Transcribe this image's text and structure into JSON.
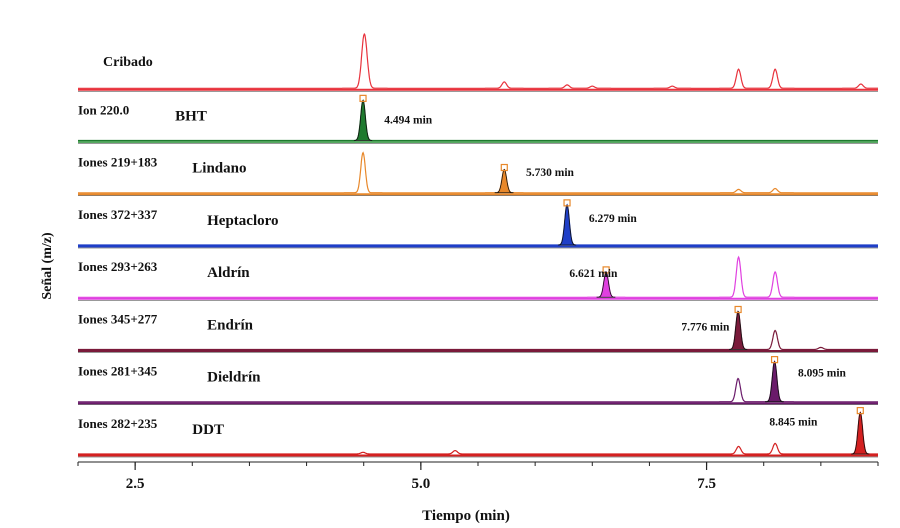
{
  "chart_data": {
    "type": "line",
    "xlabel": "Tiempo (min)",
    "ylabel": "Señal (m/z)",
    "xlim": [
      2.0,
      9.0
    ],
    "x_ticks": [
      {
        "value": 2.5,
        "label": "2.5"
      },
      {
        "value": 5.0,
        "label": "5.0"
      },
      {
        "value": 7.5,
        "label": "7.5"
      }
    ],
    "minor_tick_step": 0.5,
    "grid": false,
    "series": [
      {
        "ion": "Cribado",
        "name": "",
        "color": "#e8323c",
        "marked": false,
        "retention_time": "",
        "ion_label_x": 1.2,
        "peaks": [
          {
            "t": 4.5,
            "h": 0.95,
            "fill": false
          },
          {
            "t": 4.52,
            "h": 0.45,
            "fill": false
          },
          {
            "t": 5.73,
            "h": 0.15,
            "fill": false
          },
          {
            "t": 6.28,
            "h": 0.08,
            "fill": false
          },
          {
            "t": 6.5,
            "h": 0.05,
            "fill": false
          },
          {
            "t": 7.2,
            "h": 0.05,
            "fill": false
          },
          {
            "t": 7.78,
            "h": 0.45,
            "fill": false
          },
          {
            "t": 8.1,
            "h": 0.45,
            "fill": false
          },
          {
            "t": 8.85,
            "h": 0.1,
            "fill": false
          }
        ]
      },
      {
        "ion": "Ion 220.0",
        "name": "BHT",
        "color": "#1e7a2e",
        "baseline_color": "#55a860",
        "retention_time": "4.494 min",
        "marked": true,
        "name_x": 2.85,
        "rt_x": 4.68,
        "rt_y": 0.4,
        "peaks": [
          {
            "t": 4.494,
            "h": 0.95,
            "fill": true
          }
        ]
      },
      {
        "ion": "Iones 219+183",
        "name": "Lindano",
        "color": "#e8882a",
        "retention_time": "5.730 min",
        "marked": true,
        "name_x": 3.0,
        "rt_x": 5.92,
        "rt_y": 0.4,
        "peaks": [
          {
            "t": 4.494,
            "h": 0.95,
            "fill": false
          },
          {
            "t": 5.73,
            "h": 0.55,
            "fill": true
          },
          {
            "t": 7.78,
            "h": 0.08,
            "fill": false
          },
          {
            "t": 8.1,
            "h": 0.1,
            "fill": false
          }
        ]
      },
      {
        "ion": "Iones 372+337",
        "name": "Heptacloro",
        "color": "#1f3fc8",
        "retention_time": "6.279 min",
        "marked": true,
        "name_x": 3.13,
        "rt_x": 6.47,
        "rt_y": 0.55,
        "peaks": [
          {
            "t": 6.279,
            "h": 0.95,
            "fill": true
          }
        ]
      },
      {
        "ion": "Iones 293+263",
        "name": "Aldrín",
        "color": "#e040e0",
        "retention_time": "6.621 min",
        "marked": true,
        "name_x": 3.13,
        "rt_x": 6.3,
        "rt_y": 0.48,
        "peaks": [
          {
            "t": 6.621,
            "h": 0.6,
            "fill": true
          },
          {
            "t": 7.78,
            "h": 0.95,
            "fill": false
          },
          {
            "t": 8.1,
            "h": 0.6,
            "fill": false
          }
        ]
      },
      {
        "ion": "Iones 345+277",
        "name": "Endrín",
        "color": "#7a1a3a",
        "retention_time": "7.776 min",
        "marked": true,
        "name_x": 3.13,
        "rt_x": 7.28,
        "rt_y": 0.45,
        "peaks": [
          {
            "t": 7.776,
            "h": 0.9,
            "fill": true
          },
          {
            "t": 8.1,
            "h": 0.45,
            "fill": false
          },
          {
            "t": 8.5,
            "h": 0.05,
            "fill": false
          }
        ]
      },
      {
        "ion": "Iones 281+345",
        "name": "Dieldrín",
        "color": "#6a1a6a",
        "retention_time": "8.095 min",
        "marked": true,
        "name_x": 3.13,
        "rt_x": 8.3,
        "rt_y": 0.6,
        "peaks": [
          {
            "t": 7.776,
            "h": 0.55,
            "fill": false
          },
          {
            "t": 8.095,
            "h": 0.95,
            "fill": true
          }
        ]
      },
      {
        "ion": "Iones 282+235",
        "name": "DDT",
        "color": "#d42020",
        "retention_time": "8.845 min",
        "marked": true,
        "name_x": 3.0,
        "rt_x": 8.05,
        "rt_y": 0.68,
        "peaks": [
          {
            "t": 4.494,
            "h": 0.04,
            "fill": false
          },
          {
            "t": 5.3,
            "h": 0.08,
            "fill": false
          },
          {
            "t": 7.78,
            "h": 0.18,
            "fill": false
          },
          {
            "t": 8.1,
            "h": 0.25,
            "fill": false
          },
          {
            "t": 8.845,
            "h": 0.98,
            "fill": true
          }
        ]
      }
    ]
  }
}
